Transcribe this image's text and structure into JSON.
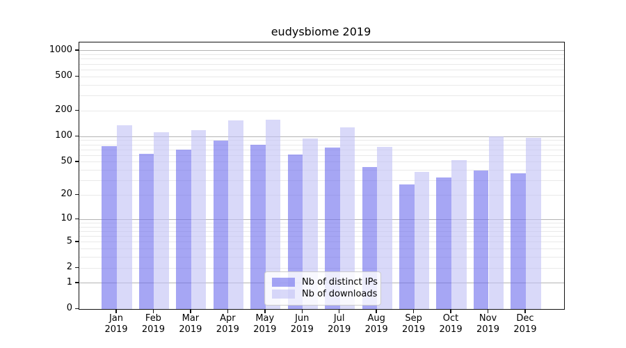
{
  "chart_data": {
    "type": "bar",
    "title": "eudysbiome 2019",
    "categories": [
      "Jan",
      "Feb",
      "Mar",
      "Apr",
      "May",
      "Jun",
      "Jul",
      "Aug",
      "Sep",
      "Oct",
      "Nov",
      "Dec"
    ],
    "year_label": "2019",
    "series": [
      {
        "name": "Nb of distinct IPs",
        "color": "#a6a6f4",
        "base_color": "#6b6bed",
        "alpha": 0.6,
        "values": [
          77,
          62,
          70,
          89,
          80,
          61,
          74,
          44,
          27,
          33,
          40,
          37
        ]
      },
      {
        "name": "Nb of downloads",
        "color": "#d9d9f9",
        "base_color": "#c0c0f5",
        "alpha": 0.6,
        "values": [
          136,
          113,
          118,
          155,
          157,
          95,
          127,
          76,
          38,
          53,
          100,
          96
        ]
      }
    ],
    "yticks": [
      0,
      1,
      2,
      5,
      10,
      20,
      50,
      100,
      200,
      500,
      1000
    ],
    "ytick_labels": [
      "0",
      "1",
      "2",
      "5",
      "10",
      "20",
      "50",
      "100",
      "200",
      "500",
      "1000"
    ],
    "ylim": [
      0,
      1250
    ],
    "yscale": "log10(1+v)",
    "xlabel": "",
    "ylabel": "",
    "grid": {
      "on": true,
      "major_color": "#b3b3b3",
      "minor_color": "#e9e9e9"
    },
    "legend_position": "lower-center"
  }
}
